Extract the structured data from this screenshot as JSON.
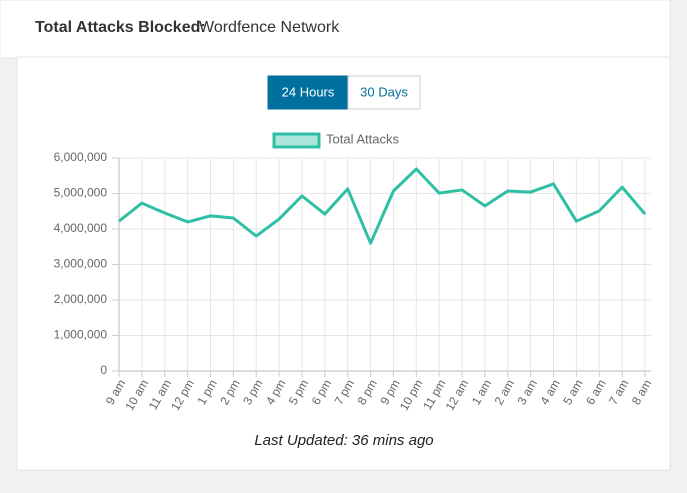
{
  "header": {
    "label": "Total Attacks Blocked:",
    "value": "Wordfence Network"
  },
  "buttons": [
    "24 Hours",
    "30 Days"
  ],
  "chart_data": {
    "type": "line",
    "categories": [
      "9 am",
      "10 am",
      "11 am",
      "12 pm",
      "1 pm",
      "2 pm",
      "3 pm",
      "4 pm",
      "5 pm",
      "6 pm",
      "7 pm",
      "8 pm",
      "9 pm",
      "10 pm",
      "11 pm",
      "12 am",
      "1 am",
      "2 am",
      "3 am",
      "4 am",
      "5 am",
      "6 am",
      "7 am",
      "8 am"
    ],
    "series": [
      {
        "name": "Total Attacks",
        "color": "#2ebfa5",
        "values": [
          4220000,
          4730000,
          4450000,
          4200000,
          4370000,
          4310000,
          3800000,
          4280000,
          4930000,
          4420000,
          5130000,
          3600000,
          5070000,
          5690000,
          5010000,
          5100000,
          4650000,
          5070000,
          5040000,
          5270000,
          4220000,
          4510000,
          5180000,
          4420000
        ]
      }
    ],
    "ylim": [
      0,
      6000000
    ],
    "yticks": [
      0,
      {
        "value": 1000000,
        "label": "1,000,000"
      },
      {
        "value": 2000000,
        "label": "2,000,000"
      },
      {
        "value": 3000000,
        "label": "3,000,000"
      },
      {
        "value": 4000000,
        "label": "4,000,000"
      },
      {
        "value": 5000000,
        "label": "5,000,000"
      },
      {
        "value": 6000000,
        "label": "6,000,000"
      }
    ],
    "grid": true
  },
  "footer": "Last Updated: 36 mins ago"
}
